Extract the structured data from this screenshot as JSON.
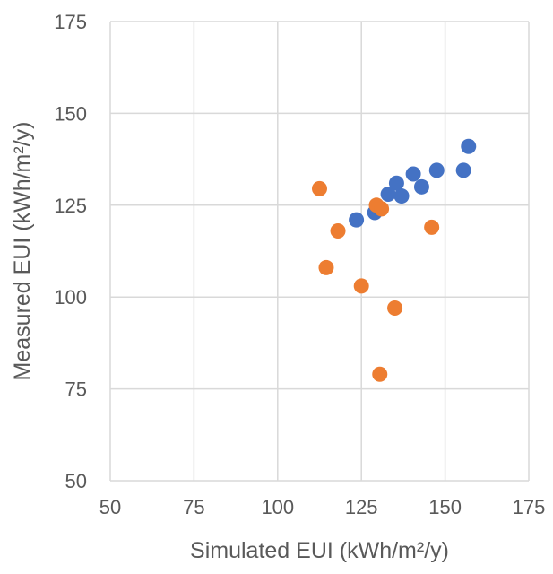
{
  "chart_data": {
    "type": "scatter",
    "title": "",
    "xlabel": "Simulated EUI (kWh/m²/y)",
    "ylabel": "Measured EUI (kWh/m²/y)",
    "xlim": [
      50,
      175
    ],
    "ylim": [
      50,
      175
    ],
    "x_ticks": [
      50,
      75,
      100,
      125,
      150,
      175
    ],
    "y_ticks": [
      50,
      75,
      100,
      125,
      150,
      175
    ],
    "grid": true,
    "legend": "none",
    "series": [
      {
        "color": "#4472C4",
        "points": [
          {
            "x": 123.5,
            "y": 121
          },
          {
            "x": 129,
            "y": 123
          },
          {
            "x": 133,
            "y": 128
          },
          {
            "x": 135.5,
            "y": 131
          },
          {
            "x": 137,
            "y": 127.5
          },
          {
            "x": 140.5,
            "y": 133.5
          },
          {
            "x": 143,
            "y": 130
          },
          {
            "x": 147.5,
            "y": 134.5
          },
          {
            "x": 155.5,
            "y": 134.5
          },
          {
            "x": 157,
            "y": 141
          }
        ]
      },
      {
        "color": "#ED7D31",
        "points": [
          {
            "x": 112.5,
            "y": 129.5
          },
          {
            "x": 114.5,
            "y": 108
          },
          {
            "x": 118,
            "y": 118
          },
          {
            "x": 125,
            "y": 103
          },
          {
            "x": 129.5,
            "y": 125
          },
          {
            "x": 131,
            "y": 124
          },
          {
            "x": 130.5,
            "y": 79
          },
          {
            "x": 135,
            "y": 97
          },
          {
            "x": 146,
            "y": 119
          }
        ]
      }
    ]
  }
}
